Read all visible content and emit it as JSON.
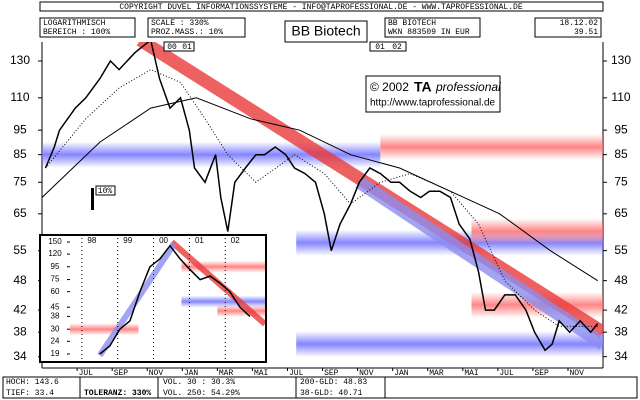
{
  "header": {
    "copyright": "COPYRIGHT DUVEL INFORMATIONSSYSTEME - INFO@TAPROFESSIONAL.DE - WWW.TAPROFESSIONAL.DE",
    "scale_mode": "LOGARITHMISCH",
    "range": "BEREICH : 100%",
    "scale": "SCALE : 330%",
    "percent": "PROZ.MASS.: 10%",
    "name": "BB BIOTECH",
    "wkn": "WKN 883509 IN EUR",
    "date": "18.12.02",
    "last": "39.51"
  },
  "footer": {
    "high": "HOCH: 143.6",
    "low": "TIEF: 33.4",
    "tolerance": "TOLERANZ: 330%",
    "vol30": "VOL. 30 : 30.3%",
    "vol250": "VOL. 250: 54.29%",
    "gld200": "200-GLD: 48.83",
    "gld38": "38-GLD: 40.71"
  },
  "chart_data": [
    {
      "type": "line",
      "title": "BB Biotech",
      "log_scale": true,
      "annotations": [
        "© 2002",
        "TA",
        "professional",
        "http://www.taprofessional.de",
        "10%"
      ],
      "year_marks": [
        "00",
        "01",
        "01",
        "02"
      ],
      "ylim": [
        32.3,
        141.7
      ],
      "yticks": [
        34,
        38,
        42,
        48,
        55,
        65,
        75,
        85,
        95,
        110,
        130
      ],
      "xlim": [
        0,
        32
      ],
      "xticks": [
        {
          "value": 2.5,
          "label": "JUL"
        },
        {
          "value": 4.5,
          "label": "SEP"
        },
        {
          "value": 6.5,
          "label": "NOV"
        },
        {
          "value": 8.5,
          "label": "JAN"
        },
        {
          "value": 10.5,
          "label": "MAR"
        },
        {
          "value": 12.5,
          "label": "MAI"
        },
        {
          "value": 14.5,
          "label": "JUL"
        },
        {
          "value": 16.5,
          "label": "SEP"
        },
        {
          "value": 18.5,
          "label": "NOV"
        },
        {
          "value": 20.5,
          "label": "JAN"
        },
        {
          "value": 22.5,
          "label": "MAR"
        },
        {
          "value": 24.5,
          "label": "MAI"
        },
        {
          "value": 26.5,
          "label": "JUL"
        },
        {
          "value": 28.5,
          "label": "SEP"
        },
        {
          "value": 30.5,
          "label": "NOV"
        }
      ],
      "series": [
        {
          "color": "#000000",
          "x": [
            0.2,
            0.7,
            1.0,
            1.9,
            2.5,
            3.3,
            3.9,
            4.4,
            5.3,
            6.2,
            6.7,
            7.3,
            7.9,
            8.4,
            8.7,
            9.3,
            9.9,
            10.2,
            10.6,
            11.0,
            11.6,
            12.2,
            12.7,
            13.3,
            13.9,
            14.4,
            15.0,
            15.6,
            16.1,
            16.5,
            17.0,
            17.6,
            18.1,
            18.7,
            19.3,
            19.9,
            20.4,
            21.0,
            21.6,
            22.1,
            22.7,
            23.3,
            23.8,
            24.4,
            24.9,
            25.3,
            25.8,
            26.4,
            27.0,
            27.6,
            28.1,
            28.7,
            29.1,
            29.5,
            30.1,
            30.7,
            31.3,
            31.7
          ],
          "values": [
            80,
            88,
            95,
            105,
            110,
            120,
            130,
            125,
            135,
            143,
            120,
            105,
            110,
            95,
            80,
            75,
            85,
            70,
            60,
            75,
            80,
            85,
            85,
            88,
            85,
            80,
            78,
            75,
            65,
            55,
            62,
            68,
            75,
            80,
            78,
            75,
            75,
            72,
            70,
            72,
            72,
            70,
            62,
            58,
            50,
            42,
            42,
            45,
            45,
            42,
            38,
            35,
            36,
            40,
            38,
            40,
            38,
            39.5
          ]
        }
      ],
      "averages": [
        {
          "style": "solid",
          "color": "#000000",
          "x": [
            0,
            3.3,
            6.2,
            8.8,
            11.9,
            14.7,
            17.6,
            20.4,
            23.3,
            26.1,
            29,
            31.7
          ],
          "values": [
            70,
            90,
            105,
            110,
            100,
            95,
            85,
            80,
            72,
            65,
            55,
            48
          ]
        },
        {
          "style": "dotted",
          "color": "#000000",
          "x": [
            0.2,
            2.5,
            4.4,
            6.2,
            7.9,
            9.3,
            10.6,
            12.2,
            14.4,
            16.1,
            17.6,
            19.3,
            21,
            23.3,
            24.9,
            26.4,
            28.1,
            29.5,
            31.7
          ],
          "values": [
            80,
            100,
            115,
            125,
            118,
            100,
            85,
            75,
            85,
            78,
            68,
            75,
            78,
            72,
            62,
            48,
            42,
            39,
            39
          ]
        }
      ],
      "bands": [
        {
          "value": 85,
          "x": [
            0,
            19.3
          ],
          "color": "#6f6fff"
        },
        {
          "value": 88,
          "x": [
            19.3,
            32
          ],
          "color": "#ff7070"
        },
        {
          "value": 57,
          "x": [
            14.5,
            32
          ],
          "color": "#6f6fff"
        },
        {
          "value": 60,
          "x": [
            24.5,
            32
          ],
          "color": "#ff7070"
        },
        {
          "value": 43,
          "x": [
            24.5,
            32
          ],
          "color": "#ff7070"
        },
        {
          "value": 36,
          "x": [
            14.5,
            32
          ],
          "color": "#6f6fff"
        }
      ],
      "channels": [
        {
          "x": [
            5.6,
            32
          ],
          "values": [
            143,
            38
          ],
          "color": "#e83a3a"
        },
        {
          "x": [
            18.1,
            32
          ],
          "values": [
            75,
            36
          ],
          "color": "#8c8cf0"
        }
      ]
    },
    {
      "type": "line",
      "log_scale": true,
      "ylim": [
        17,
        161.5
      ],
      "yticks": [
        19,
        24,
        30,
        38,
        45,
        60,
        75,
        95,
        120,
        150
      ],
      "xlim": [
        1997.39,
        2002.83
      ],
      "xticks": [
        {
          "value": 1998,
          "label": "98"
        },
        {
          "value": 1999,
          "label": "99"
        },
        {
          "value": 2000,
          "label": "00"
        },
        {
          "value": 2001,
          "label": "01"
        },
        {
          "value": 2002,
          "label": "02"
        }
      ],
      "series": [
        {
          "color": "#000000",
          "x": [
            1998.22,
            1998.5,
            1998.78,
            1999.06,
            1999.34,
            1999.62,
            1999.9,
            2000.18,
            2000.46,
            2000.74,
            2001.02,
            2001.3,
            2001.58,
            2001.85,
            2002.13,
            2002.41
          ],
          "values": [
            19,
            22,
            30,
            35,
            60,
            95,
            110,
            140,
            110,
            90,
            75,
            80,
            70,
            60,
            45,
            38
          ]
        }
      ],
      "averages": [],
      "bands": [
        {
          "value": 30,
          "x": [
            1997.39,
            1999.3
          ],
          "color": "#ff7070"
        },
        {
          "value": 95,
          "x": [
            2000.5,
            2002.83
          ],
          "color": "#ff7070"
        },
        {
          "value": 50,
          "x": [
            2000.5,
            2002.83
          ],
          "color": "#6f6fff"
        },
        {
          "value": 42,
          "x": [
            2001.5,
            2002.83
          ],
          "color": "#ff7070"
        }
      ],
      "channels": [
        {
          "x": [
            2000.23,
            2002.83
          ],
          "values": [
            150,
            33
          ],
          "color": "#e83a3a"
        },
        {
          "x": [
            1998.22,
            2000.3
          ],
          "values": [
            18.5,
            145
          ],
          "color": "#8c8cf0"
        }
      ]
    }
  ]
}
